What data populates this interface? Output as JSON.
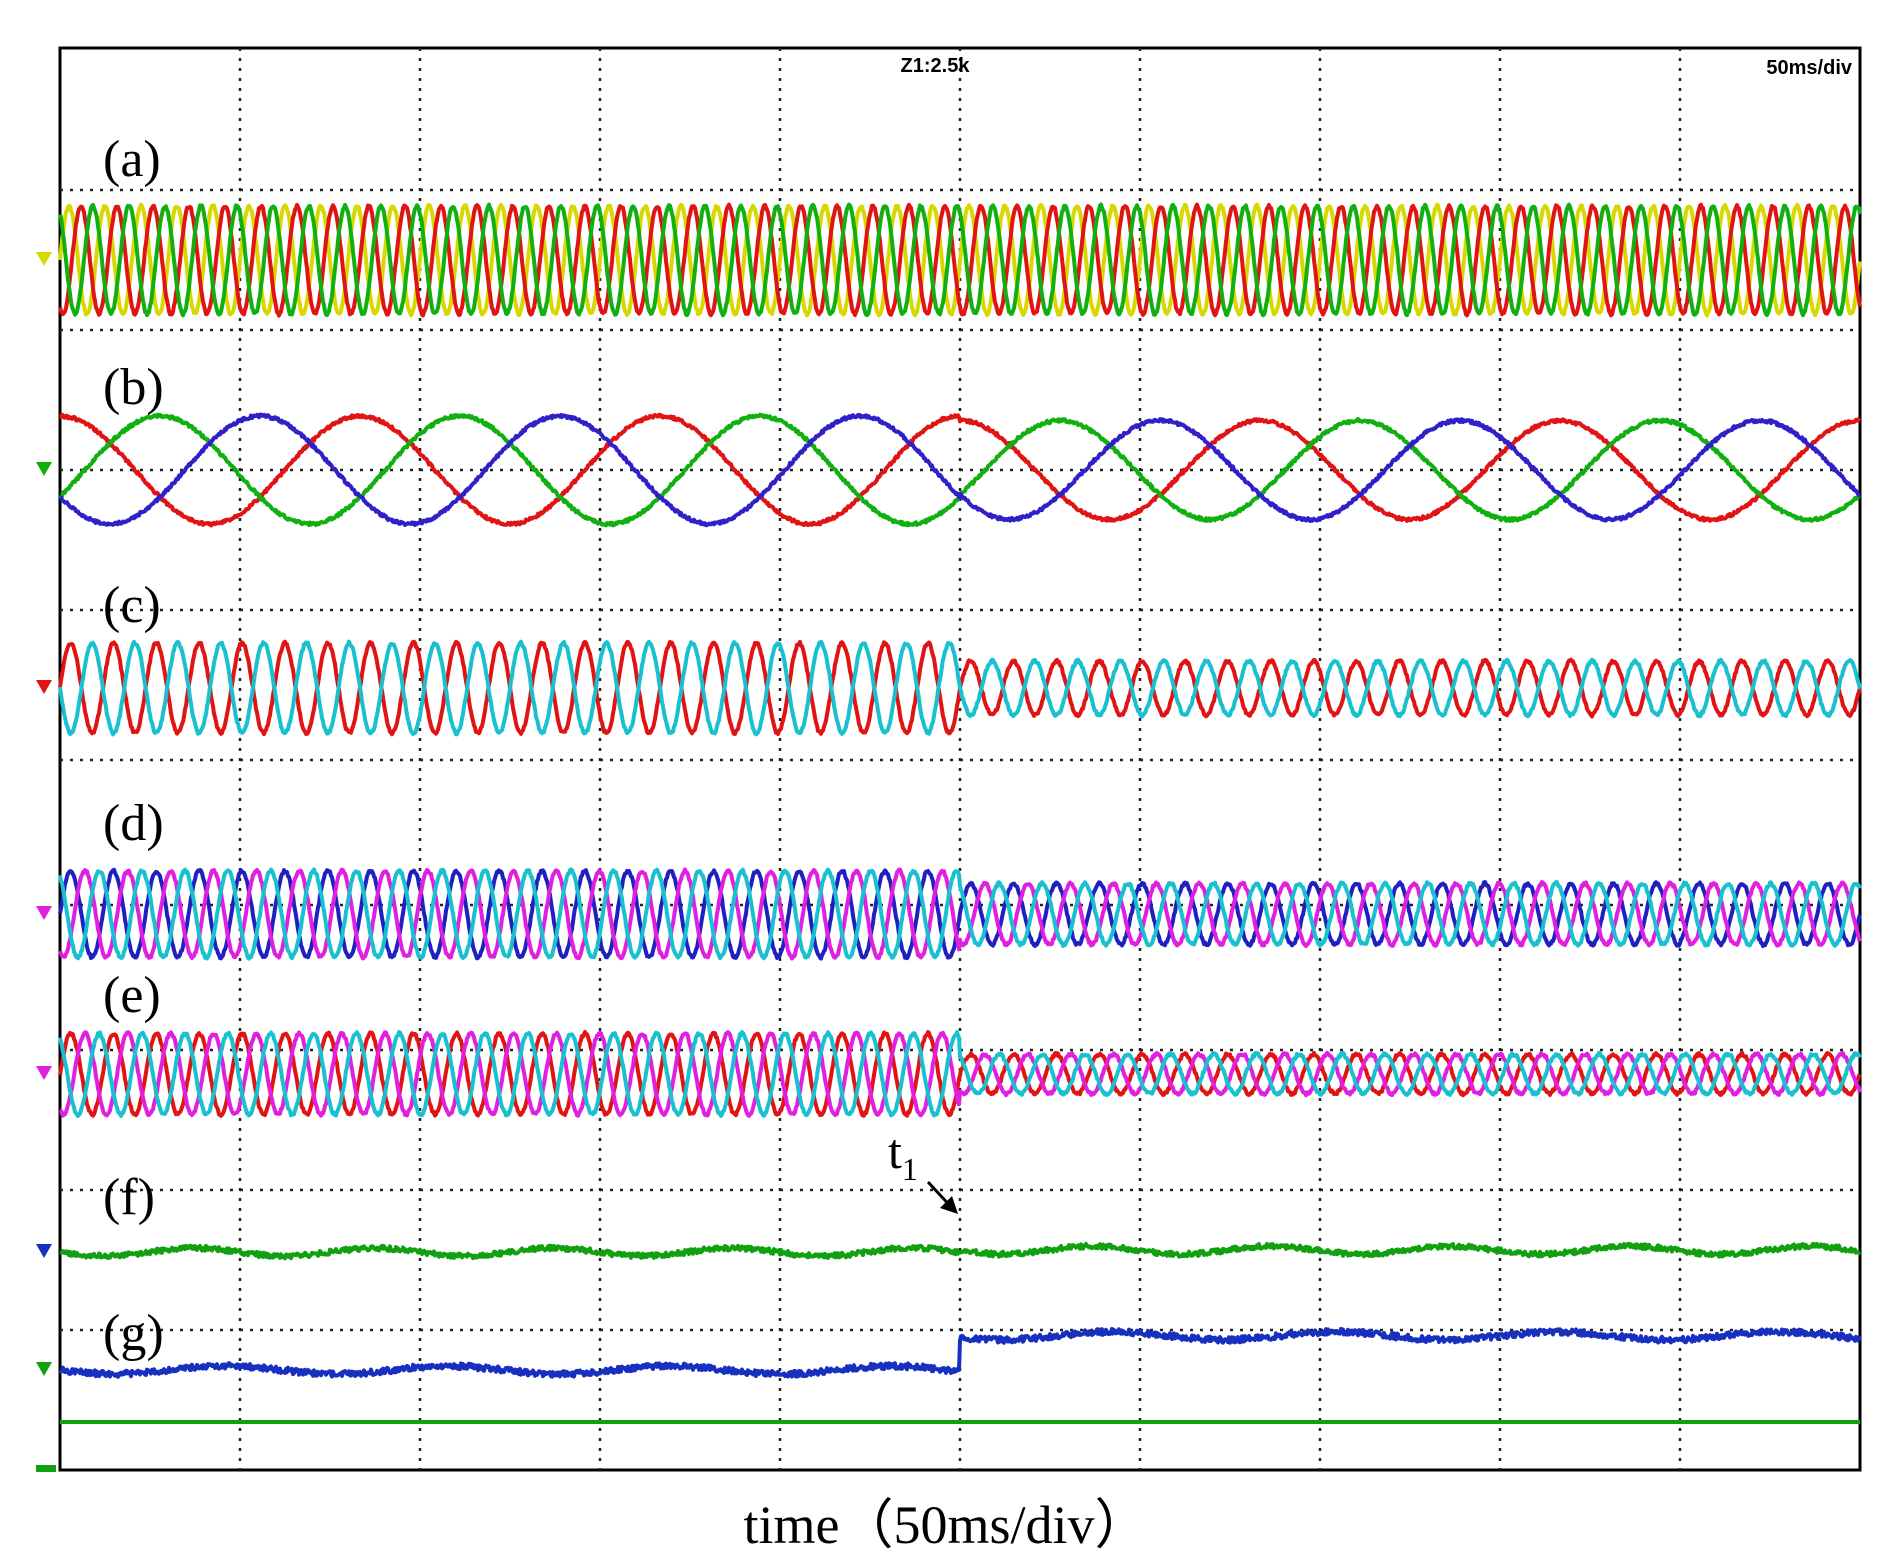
{
  "chart_data": {
    "type": "line",
    "title": "",
    "xlabel": "time（50ms/div）",
    "ylabel": "",
    "grid": true,
    "x_divisions": 10,
    "header_center": "Z1:2.5k",
    "header_right": "50ms/div",
    "event_marker": {
      "label": "t",
      "subscript": "1",
      "time_div": 5.0
    },
    "panels": [
      {
        "label": "(a)",
        "kind": "three-phase",
        "cycles_per_div": 5.0,
        "amplitude_div_before": 0.6,
        "amplitude_div_after": 0.6,
        "series": [
          {
            "color": "#d8d800",
            "phase_deg": 0
          },
          {
            "color": "#e01414",
            "phase_deg": -120
          },
          {
            "color": "#10b010",
            "phase_deg": 120
          }
        ]
      },
      {
        "label": "(b)",
        "kind": "three-phase",
        "cycles_per_div": 0.6,
        "amplitude_div_before": 0.6,
        "amplitude_div_after": 0.55,
        "series": [
          {
            "color": "#e01414",
            "phase_deg": 90
          },
          {
            "color": "#10b010",
            "phase_deg": -30
          },
          {
            "color": "#3020c8",
            "phase_deg": 210
          }
        ]
      },
      {
        "label": "(c)",
        "kind": "two-phase",
        "cycles_per_div": 4.2,
        "amplitude_div_before": 0.5,
        "amplitude_div_after": 0.3,
        "series": [
          {
            "color": "#e01414",
            "phase_deg": 0
          },
          {
            "color": "#18c0d0",
            "phase_deg": 180
          }
        ]
      },
      {
        "label": "(d)",
        "kind": "three-phase",
        "cycles_per_div": 4.2,
        "amplitude_div_before": 0.48,
        "amplitude_div_after": 0.34,
        "series": [
          {
            "color": "#2020c0",
            "phase_deg": 0
          },
          {
            "color": "#e020e0",
            "phase_deg": -120
          },
          {
            "color": "#18c0d0",
            "phase_deg": 120
          }
        ]
      },
      {
        "label": "(e)",
        "kind": "three-phase",
        "cycles_per_div": 4.2,
        "amplitude_div_before": 0.45,
        "amplitude_div_after": 0.22,
        "series": [
          {
            "color": "#e01414",
            "phase_deg": 0
          },
          {
            "color": "#e020e0",
            "phase_deg": -120
          },
          {
            "color": "#18c0d0",
            "phase_deg": 120
          }
        ]
      },
      {
        "label": "(f)",
        "kind": "dc",
        "level_div_before": 0,
        "level_div_after": 0.02,
        "series": [
          {
            "color": "#10a010"
          }
        ]
      },
      {
        "label": "(g)",
        "kind": "dc-step",
        "level_div_before": 0,
        "level_div_after": 0.38,
        "series": [
          {
            "color": "#1830c0"
          }
        ]
      }
    ],
    "baseline": {
      "color": "#10a010"
    },
    "left_markers": [
      "#d8d800",
      "#10b010",
      "#e01414",
      "#e020e0",
      "#e020e0",
      "#1830c0",
      "#10a010"
    ]
  }
}
